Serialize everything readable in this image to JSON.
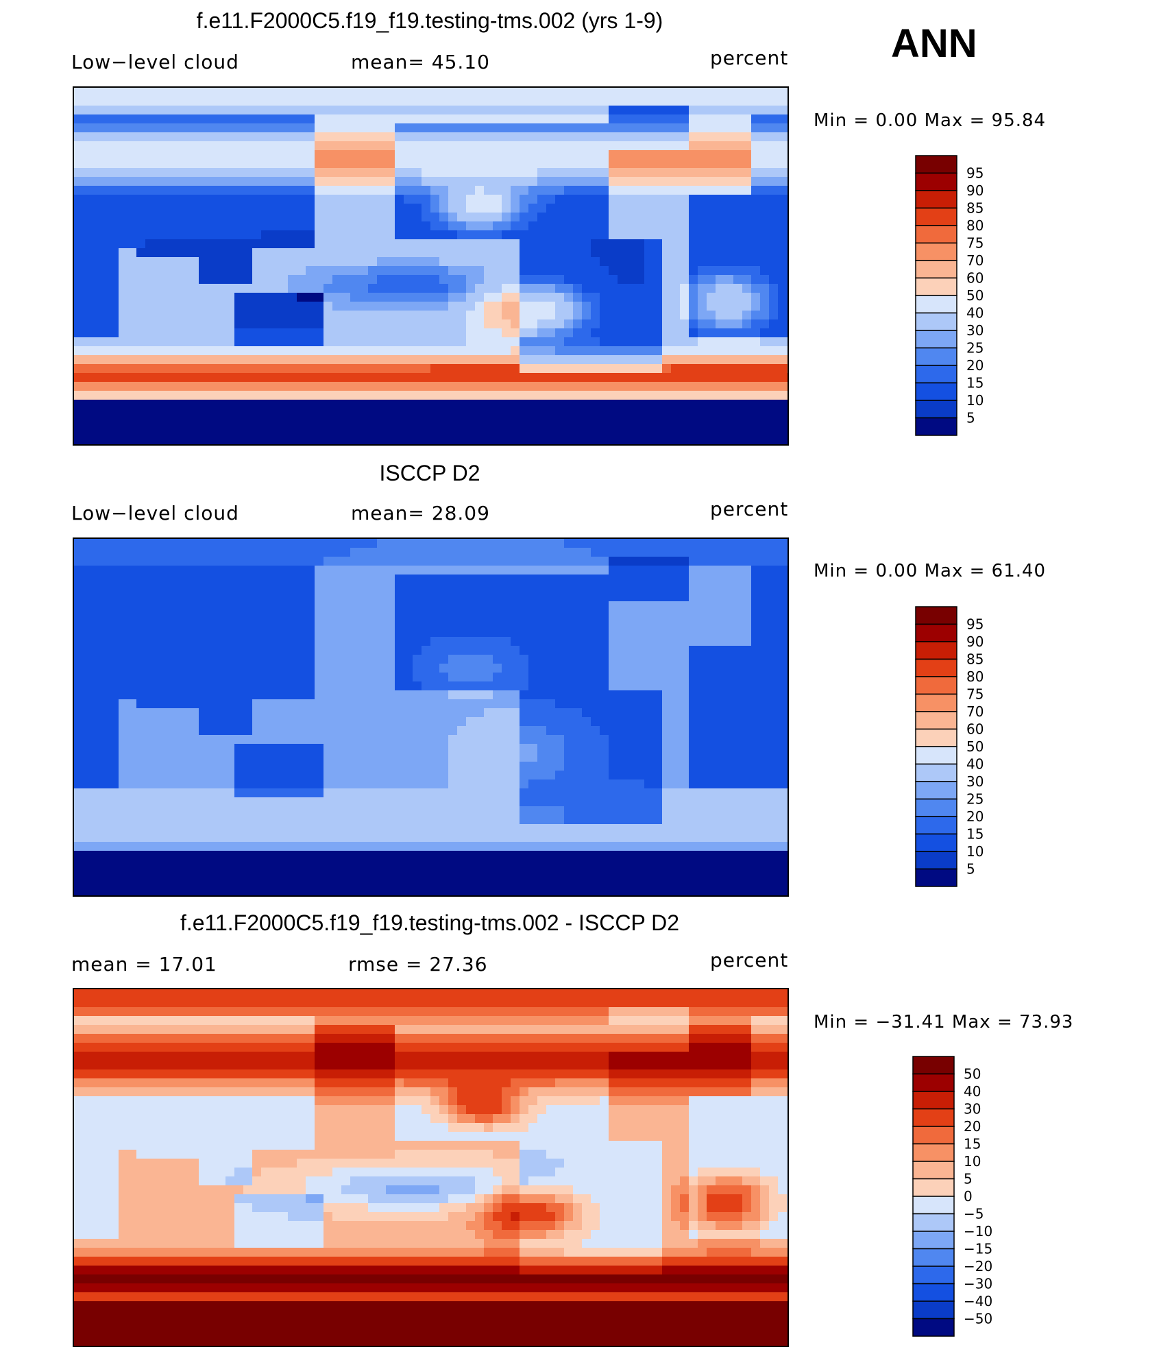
{
  "season": "ANN",
  "panels": [
    {
      "id": "model",
      "title": "f.e11.F2000C5.f19_f19.testing-tms.002 (yrs 1-9)",
      "left_label": "Low−level cloud",
      "center_label": "mean=   45.10",
      "right_label": "percent",
      "minmax": "Min =     0.00 Max =   95.84",
      "colorbar_labels": [
        "95",
        "90",
        "85",
        "80",
        "75",
        "70",
        "60",
        "50",
        "40",
        "30",
        "25",
        "20",
        "15",
        "10",
        "5"
      ],
      "mean": 45.1,
      "min": 0.0,
      "max": 95.84
    },
    {
      "id": "obs",
      "title": "ISCCP D2",
      "left_label": "Low−level cloud",
      "center_label": "mean=   28.09",
      "right_label": "percent",
      "minmax": "Min =     0.00 Max =   61.40",
      "colorbar_labels": [
        "95",
        "90",
        "85",
        "80",
        "75",
        "70",
        "60",
        "50",
        "40",
        "30",
        "25",
        "20",
        "15",
        "10",
        "5"
      ],
      "mean": 28.09,
      "min": 0.0,
      "max": 61.4
    },
    {
      "id": "diff",
      "title": "f.e11.F2000C5.f19_f19.testing-tms.002 - ISCCP D2",
      "left_label": "mean =   17.01",
      "center_label": "rmse =   27.36",
      "right_label": "percent",
      "minmax": "Min = −31.41 Max =   73.93",
      "colorbar_labels": [
        "50",
        "40",
        "30",
        "20",
        "15",
        "10",
        "5",
        "0",
        "−5",
        "−10",
        "−15",
        "−20",
        "−30",
        "−40",
        "−50"
      ],
      "mean": 17.01,
      "rmse": 27.36,
      "min": -31.41,
      "max": 73.93
    }
  ],
  "palette": [
    "#000a82",
    "#0528a5",
    "#0a3cc8",
    "#1450e1",
    "#2d69eb",
    "#5087f0",
    "#7da7f5",
    "#adc8f8",
    "#d7e5fb",
    "#fdf0e1",
    "#fcd1b9",
    "#fab593",
    "#f79165",
    "#f06a3c",
    "#e34016",
    "#c81e05",
    "#9c0000",
    "#780000"
  ],
  "chart_data": [
    {
      "type": "heatmap",
      "title": "f.e11.F2000C5.f19_f19.testing-tms.002 (yrs 1-9)",
      "variable": "Low−level cloud",
      "units": "percent",
      "mean": 45.1,
      "min": 0.0,
      "max": 95.84,
      "levels": [
        5,
        10,
        15,
        20,
        25,
        30,
        40,
        50,
        60,
        70,
        75,
        80,
        85,
        90,
        95
      ]
    },
    {
      "type": "heatmap",
      "title": "ISCCP D2",
      "variable": "Low−level cloud",
      "units": "percent",
      "mean": 28.09,
      "min": 0.0,
      "max": 61.4,
      "levels": [
        5,
        10,
        15,
        20,
        25,
        30,
        40,
        50,
        60,
        70,
        75,
        80,
        85,
        90,
        95
      ]
    },
    {
      "type": "heatmap",
      "title": "f.e11.F2000C5.f19_f19.testing-tms.002 - ISCCP D2",
      "units": "percent",
      "mean": 17.01,
      "rmse": 27.36,
      "min": -31.41,
      "max": 73.93,
      "levels": [
        -50,
        -40,
        -30,
        -20,
        -15,
        -10,
        -5,
        0,
        5,
        10,
        15,
        20,
        30,
        40,
        50
      ]
    }
  ]
}
